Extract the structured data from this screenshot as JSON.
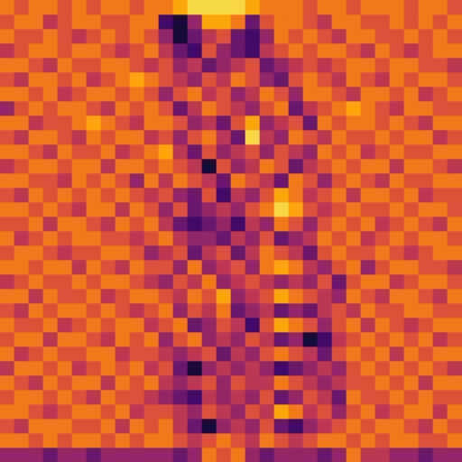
{
  "chart_data": {
    "type": "heatmap",
    "color": "inferno",
    "zlim": [
      0,
      10
    ],
    "tick_labels": false,
    "cells": [
      [
        7,
        6,
        7,
        7,
        6,
        7,
        6,
        7,
        7,
        6,
        7,
        7,
        8,
        9,
        9,
        9,
        9,
        8,
        7,
        7,
        7,
        6,
        7,
        7,
        6,
        7,
        7,
        7,
        6,
        7,
        7,
        6
      ],
      [
        6,
        7,
        7,
        5,
        6,
        7,
        7,
        6,
        6,
        7,
        7,
        2,
        1,
        4,
        8,
        8,
        7,
        3,
        6,
        7,
        7,
        6,
        5,
        7,
        7,
        6,
        6,
        7,
        6,
        7,
        6,
        7
      ],
      [
        7,
        6,
        6,
        7,
        6,
        5,
        6,
        7,
        6,
        7,
        6,
        4,
        1,
        3,
        5,
        6,
        3,
        2,
        4,
        7,
        6,
        7,
        6,
        5,
        7,
        7,
        6,
        6,
        7,
        6,
        7,
        6
      ],
      [
        5,
        6,
        7,
        7,
        6,
        7,
        7,
        6,
        5,
        6,
        7,
        5,
        3,
        2,
        6,
        4,
        3,
        2,
        5,
        6,
        7,
        6,
        7,
        7,
        6,
        5,
        7,
        6,
        5,
        6,
        7,
        7
      ],
      [
        7,
        7,
        6,
        5,
        7,
        6,
        6,
        7,
        7,
        6,
        5,
        6,
        4,
        5,
        3,
        4,
        5,
        6,
        3,
        4,
        5,
        6,
        5,
        6,
        7,
        7,
        6,
        7,
        7,
        6,
        6,
        5
      ],
      [
        6,
        5,
        7,
        7,
        6,
        7,
        5,
        6,
        7,
        8,
        7,
        6,
        5,
        4,
        6,
        5,
        7,
        6,
        4,
        3,
        6,
        7,
        6,
        5,
        7,
        6,
        5,
        7,
        6,
        7,
        7,
        6
      ],
      [
        7,
        7,
        6,
        7,
        5,
        6,
        7,
        7,
        6,
        7,
        6,
        4,
        6,
        7,
        5,
        6,
        4,
        5,
        7,
        6,
        4,
        7,
        7,
        6,
        5,
        7,
        7,
        6,
        7,
        5,
        6,
        7
      ],
      [
        4,
        6,
        7,
        6,
        7,
        7,
        6,
        5,
        7,
        6,
        7,
        6,
        3,
        5,
        7,
        6,
        5,
        4,
        6,
        7,
        3,
        5,
        6,
        7,
        8,
        7,
        6,
        5,
        7,
        7,
        6,
        6
      ],
      [
        7,
        7,
        5,
        6,
        6,
        7,
        8,
        7,
        6,
        5,
        7,
        7,
        6,
        4,
        5,
        3,
        6,
        8,
        4,
        5,
        6,
        3,
        7,
        6,
        7,
        7,
        6,
        7,
        6,
        5,
        7,
        7
      ],
      [
        6,
        5,
        7,
        7,
        6,
        5,
        7,
        6,
        7,
        7,
        5,
        6,
        4,
        6,
        7,
        5,
        3,
        9,
        5,
        4,
        7,
        6,
        5,
        7,
        6,
        6,
        7,
        6,
        7,
        7,
        5,
        6
      ],
      [
        7,
        7,
        6,
        5,
        7,
        6,
        6,
        7,
        5,
        6,
        7,
        8,
        5,
        3,
        6,
        4,
        5,
        6,
        4,
        6,
        5,
        4,
        7,
        6,
        7,
        5,
        6,
        7,
        6,
        6,
        7,
        7
      ],
      [
        5,
        6,
        7,
        7,
        6,
        7,
        7,
        5,
        7,
        7,
        6,
        7,
        6,
        5,
        1,
        6,
        4,
        5,
        7,
        6,
        3,
        5,
        6,
        7,
        6,
        7,
        7,
        5,
        7,
        7,
        6,
        5
      ],
      [
        7,
        7,
        6,
        6,
        5,
        7,
        6,
        7,
        6,
        4,
        7,
        5,
        7,
        6,
        5,
        3,
        7,
        6,
        5,
        3,
        7,
        6,
        4,
        6,
        7,
        6,
        5,
        7,
        6,
        6,
        7,
        7
      ],
      [
        6,
        5,
        7,
        6,
        7,
        6,
        7,
        6,
        7,
        6,
        5,
        6,
        4,
        3,
        6,
        2,
        5,
        4,
        6,
        8,
        7,
        5,
        6,
        7,
        5,
        7,
        7,
        6,
        7,
        5,
        6,
        6
      ],
      [
        7,
        7,
        6,
        7,
        6,
        5,
        7,
        7,
        5,
        7,
        6,
        4,
        6,
        3,
        4,
        5,
        4,
        6,
        7,
        9,
        8,
        6,
        5,
        6,
        7,
        6,
        6,
        7,
        6,
        7,
        7,
        6
      ],
      [
        6,
        6,
        7,
        5,
        7,
        7,
        6,
        5,
        7,
        6,
        7,
        5,
        3,
        2,
        3,
        4,
        2,
        5,
        4,
        7,
        6,
        4,
        6,
        7,
        6,
        7,
        5,
        6,
        7,
        6,
        5,
        7
      ],
      [
        7,
        5,
        6,
        7,
        6,
        7,
        7,
        6,
        6,
        5,
        6,
        7,
        5,
        4,
        4,
        3,
        5,
        4,
        6,
        3,
        4,
        5,
        7,
        6,
        7,
        5,
        6,
        7,
        6,
        7,
        7,
        6
      ],
      [
        6,
        7,
        7,
        6,
        5,
        6,
        6,
        7,
        7,
        6,
        4,
        5,
        6,
        3,
        5,
        6,
        3,
        5,
        7,
        6,
        5,
        3,
        6,
        7,
        6,
        6,
        7,
        6,
        5,
        6,
        7,
        7
      ],
      [
        7,
        7,
        6,
        7,
        7,
        5,
        7,
        6,
        5,
        7,
        6,
        6,
        4,
        7,
        4,
        5,
        6,
        4,
        7,
        8,
        7,
        5,
        4,
        6,
        7,
        4,
        6,
        7,
        7,
        6,
        6,
        5
      ],
      [
        5,
        6,
        7,
        6,
        6,
        7,
        6,
        7,
        7,
        6,
        5,
        4,
        6,
        5,
        7,
        4,
        5,
        6,
        5,
        4,
        5,
        4,
        6,
        3,
        6,
        7,
        7,
        5,
        6,
        7,
        7,
        6
      ],
      [
        7,
        7,
        5,
        7,
        6,
        6,
        7,
        5,
        6,
        7,
        7,
        6,
        5,
        7,
        6,
        8,
        4,
        5,
        6,
        8,
        7,
        6,
        5,
        4,
        7,
        6,
        5,
        7,
        7,
        6,
        5,
        7
      ],
      [
        6,
        5,
        7,
        6,
        7,
        7,
        6,
        7,
        6,
        5,
        6,
        7,
        4,
        6,
        5,
        7,
        3,
        4,
        5,
        3,
        4,
        3,
        5,
        6,
        5,
        7,
        6,
        6,
        7,
        7,
        6,
        6
      ],
      [
        7,
        6,
        6,
        7,
        5,
        6,
        7,
        6,
        7,
        7,
        5,
        6,
        7,
        3,
        4,
        6,
        5,
        2,
        6,
        8,
        7,
        6,
        4,
        6,
        7,
        5,
        7,
        6,
        5,
        6,
        7,
        7
      ],
      [
        6,
        7,
        7,
        5,
        7,
        7,
        6,
        5,
        7,
        6,
        7,
        4,
        6,
        7,
        4,
        5,
        4,
        6,
        5,
        3,
        4,
        1,
        2,
        5,
        6,
        7,
        6,
        7,
        6,
        7,
        5,
        6
      ],
      [
        7,
        5,
        6,
        7,
        6,
        6,
        7,
        7,
        5,
        6,
        6,
        5,
        4,
        5,
        6,
        3,
        5,
        4,
        6,
        7,
        6,
        5,
        3,
        6,
        7,
        6,
        7,
        5,
        7,
        6,
        7,
        7
      ],
      [
        5,
        7,
        7,
        6,
        7,
        5,
        6,
        7,
        6,
        7,
        5,
        6,
        3,
        1,
        4,
        5,
        4,
        5,
        4,
        2,
        3,
        4,
        5,
        4,
        6,
        7,
        6,
        7,
        6,
        7,
        6,
        5
      ],
      [
        7,
        6,
        5,
        7,
        6,
        7,
        7,
        5,
        7,
        6,
        7,
        5,
        4,
        5,
        6,
        4,
        6,
        5,
        5,
        7,
        6,
        5,
        4,
        5,
        6,
        6,
        7,
        6,
        7,
        5,
        7,
        7
      ],
      [
        6,
        7,
        7,
        6,
        7,
        6,
        5,
        7,
        6,
        6,
        5,
        4,
        3,
        2,
        5,
        4,
        5,
        4,
        6,
        3,
        4,
        6,
        5,
        3,
        7,
        6,
        6,
        7,
        6,
        7,
        6,
        6
      ],
      [
        7,
        7,
        6,
        5,
        6,
        7,
        7,
        6,
        7,
        5,
        6,
        6,
        5,
        4,
        6,
        5,
        4,
        6,
        5,
        8,
        7,
        5,
        6,
        4,
        6,
        7,
        5,
        6,
        7,
        7,
        5,
        7
      ],
      [
        6,
        5,
        7,
        7,
        7,
        6,
        6,
        7,
        5,
        7,
        6,
        7,
        5,
        3,
        1,
        4,
        5,
        4,
        6,
        3,
        2,
        4,
        5,
        6,
        7,
        6,
        7,
        7,
        6,
        5,
        7,
        6
      ],
      [
        7,
        7,
        6,
        7,
        6,
        7,
        7,
        6,
        7,
        6,
        7,
        7,
        6,
        5,
        6,
        7,
        6,
        5,
        7,
        6,
        5,
        6,
        7,
        7,
        6,
        7,
        6,
        7,
        7,
        6,
        6,
        7
      ],
      [
        4,
        4,
        4,
        3,
        4,
        4,
        3,
        4,
        4,
        4,
        4,
        4,
        3,
        4,
        7,
        6,
        7,
        4,
        3,
        4,
        4,
        4,
        3,
        4,
        7,
        5,
        5,
        4,
        4,
        3,
        4,
        4
      ]
    ]
  }
}
